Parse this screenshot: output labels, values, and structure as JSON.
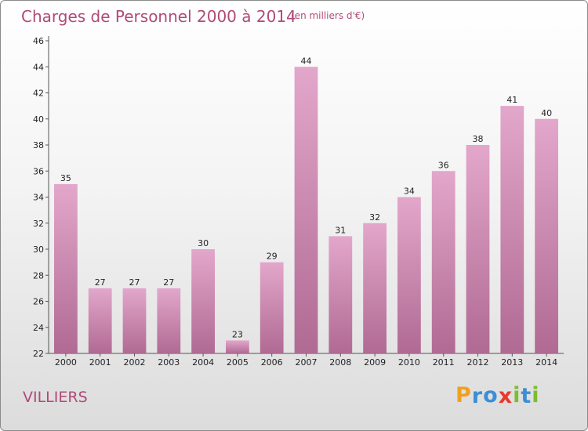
{
  "header": {
    "title": "Charges de Personnel 2000 à 2014",
    "unit": "(en milliers d'€)"
  },
  "footer": {
    "place": "VILLIERS",
    "logo_letters": [
      "P",
      "r",
      "o",
      "x",
      "i",
      "t",
      "i"
    ],
    "logo_colors": [
      "#f0a020",
      "#3a8fd6",
      "#3a8fd6",
      "#e8392c",
      "#7cbd2f",
      "#3a8fd6",
      "#7cbd2f"
    ]
  },
  "chart_data": {
    "type": "bar",
    "title": "Charges de Personnel 2000 à 2014",
    "subtitle": "(en milliers d'€)",
    "xlabel": "",
    "ylabel": "",
    "categories": [
      "2000",
      "2001",
      "2002",
      "2003",
      "2004",
      "2005",
      "2006",
      "2007",
      "2008",
      "2009",
      "2010",
      "2011",
      "2012",
      "2013",
      "2014"
    ],
    "values": [
      35,
      27,
      27,
      27,
      30,
      23,
      29,
      44,
      31,
      32,
      34,
      36,
      38,
      41,
      40
    ],
    "ylim": [
      22,
      46
    ],
    "yticks": [
      22,
      24,
      26,
      28,
      30,
      32,
      34,
      36,
      38,
      40,
      42,
      44,
      46
    ],
    "grid": false,
    "legend": "none",
    "bar_color_top": "#e3a7cb",
    "bar_color_bottom": "#b06a93",
    "text_color": "#222222"
  }
}
